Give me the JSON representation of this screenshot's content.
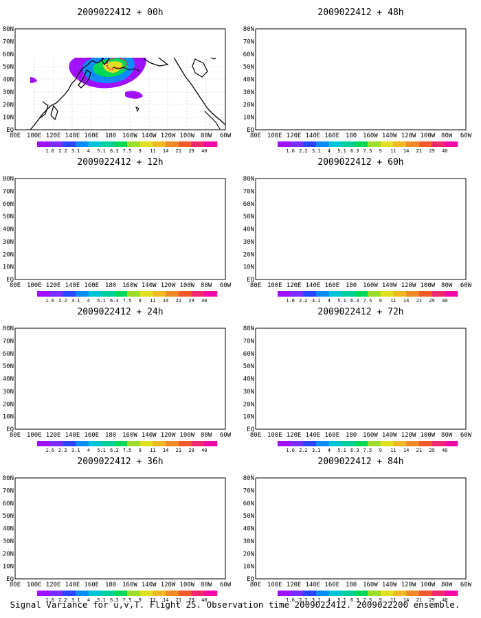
{
  "caption": "Signal Variance for u,v,T. Flight 25. Observation time 2009022412. 2009022200 ensemble.",
  "lat_labels": [
    "80N",
    "70N",
    "60N",
    "50N",
    "40N",
    "30N",
    "20N",
    "10N",
    "EQ"
  ],
  "lon_labels": [
    "80E",
    "100E",
    "120E",
    "140E",
    "160E",
    "180",
    "160W",
    "140W",
    "120W",
    "100W",
    "80W",
    "60W"
  ],
  "colorbar": {
    "levels": [
      "1.6",
      "2.2",
      "3.1",
      "4",
      "5.1",
      "6.3",
      "7.5",
      "9",
      "11",
      "14",
      "21",
      "29",
      "40"
    ],
    "colors": [
      "#a010ff",
      "#7a2cff",
      "#2a44ff",
      "#0a8cff",
      "#00c4d8",
      "#00d09a",
      "#00d85a",
      "#9ade2a",
      "#e0e020",
      "#f0b822",
      "#f08a26",
      "#f05a28",
      "#f02870",
      "#f00aa8"
    ]
  },
  "panels": [
    {
      "title": "2009022412 + 00h"
    },
    {
      "title": "2009022412 + 48h"
    },
    {
      "title": "2009022412 + 12h"
    },
    {
      "title": "2009022412 + 60h"
    },
    {
      "title": "2009022412 + 24h"
    },
    {
      "title": "2009022412 + 72h"
    },
    {
      "title": "2009022412 + 36h"
    },
    {
      "title": "2009022412 + 84h"
    }
  ],
  "map_colors": {
    "land_outline": "#000000",
    "grid": "#9a9a9a",
    "observation_marker": "#ff0066"
  }
}
